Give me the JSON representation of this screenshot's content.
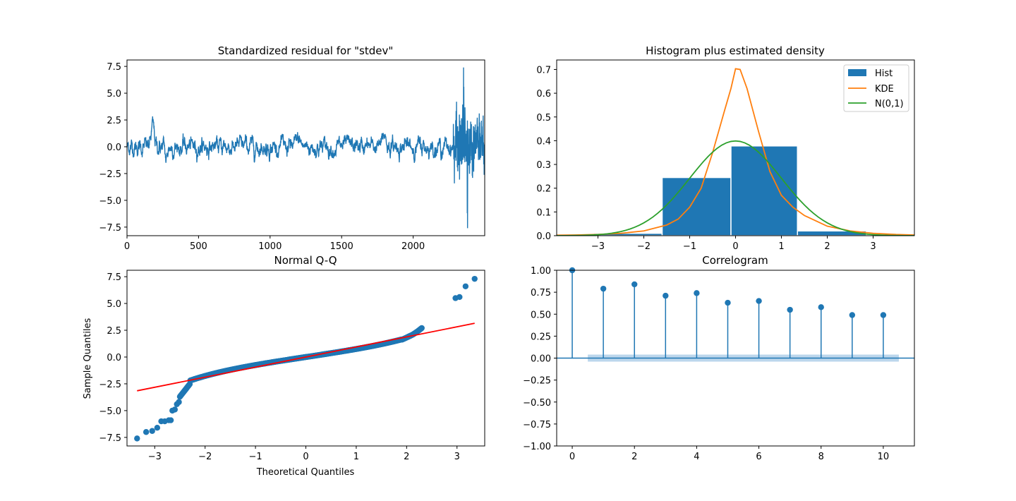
{
  "charts": {
    "residual": {
      "type": "line",
      "title": "Standardized residual for \"stdev\"",
      "xlim": [
        0,
        2500
      ],
      "ylim": [
        -8.3,
        8.1
      ],
      "xticks": [
        0,
        500,
        1000,
        1500,
        2000
      ],
      "yticks": [
        -7.5,
        -5.0,
        -2.5,
        0.0,
        2.5,
        5.0,
        7.5
      ],
      "n_points": 2500,
      "color": "#1f77b4",
      "features": {
        "spike_index": 2352,
        "spike_max": 7.4,
        "spike_min": -7.6,
        "early_bump_index": 180,
        "early_bump_value": 2.3,
        "mid_peak_index": 1200,
        "mid_peak_value": 1.3,
        "late_peak_index": 1800,
        "late_peak_value": 2.1
      }
    },
    "histogram": {
      "type": "bar",
      "title": "Histogram plus estimated density",
      "xlim": [
        -3.9,
        3.9
      ],
      "ylim": [
        0,
        0.74
      ],
      "xticks": [
        -3,
        -2,
        -1,
        0,
        1,
        2,
        3
      ],
      "yticks": [
        0.0,
        0.1,
        0.2,
        0.3,
        0.4,
        0.5,
        0.6,
        0.7
      ],
      "bins": [
        {
          "left": -4.6,
          "right": -3.1,
          "value": 0.002
        },
        {
          "left": -3.1,
          "right": -1.6,
          "value": 0.01
        },
        {
          "left": -1.6,
          "right": -0.1,
          "value": 0.245
        },
        {
          "left": -0.1,
          "right": 1.35,
          "value": 0.378
        },
        {
          "left": 1.35,
          "right": 2.85,
          "value": 0.02
        },
        {
          "left": 2.85,
          "right": 4.35,
          "value": 0.004
        }
      ],
      "kde": {
        "x": [
          -3.9,
          -3.5,
          -3.0,
          -2.5,
          -2.0,
          -1.5,
          -1.25,
          -1.0,
          -0.75,
          -0.5,
          -0.25,
          -0.1,
          0.0,
          0.1,
          0.25,
          0.5,
          0.75,
          1.0,
          1.25,
          1.5,
          2.0,
          2.5,
          3.0,
          3.5,
          3.9
        ],
        "y": [
          0.002,
          0.003,
          0.005,
          0.01,
          0.02,
          0.045,
          0.07,
          0.12,
          0.2,
          0.35,
          0.52,
          0.62,
          0.703,
          0.7,
          0.62,
          0.44,
          0.27,
          0.17,
          0.12,
          0.085,
          0.04,
          0.02,
          0.01,
          0.005,
          0.003
        ]
      },
      "legend": [
        "Hist",
        "KDE",
        "N(0,1)"
      ],
      "colors": {
        "hist": "#1f77b4",
        "kde": "#ff7f0e",
        "normal": "#2ca02c"
      }
    },
    "qq": {
      "type": "scatter",
      "title": "Normal Q-Q",
      "xlabel": "Theoretical Quantiles",
      "ylabel": "Sample Quantiles",
      "xlim": [
        -3.55,
        3.55
      ],
      "ylim": [
        -8.3,
        8.1
      ],
      "xticks": [
        -3,
        -2,
        -1,
        0,
        1,
        2,
        3
      ],
      "yticks": [
        -7.5,
        -5.0,
        -2.5,
        0.0,
        2.5,
        5.0,
        7.5
      ],
      "reference_line": {
        "x": [
          -3.35,
          3.35
        ],
        "y": [
          -3.15,
          3.15
        ]
      },
      "tail_points": [
        {
          "x": -3.35,
          "y": -7.6
        },
        {
          "x": -3.17,
          "y": -7.0
        },
        {
          "x": -3.05,
          "y": -6.9
        },
        {
          "x": -2.95,
          "y": -6.6
        },
        {
          "x": -2.87,
          "y": -6.0
        },
        {
          "x": -2.8,
          "y": -6.0
        },
        {
          "x": -2.72,
          "y": -5.9
        },
        {
          "x": -2.68,
          "y": -5.9
        },
        {
          "x": -2.65,
          "y": -5.0
        },
        {
          "x": -2.6,
          "y": -4.9
        },
        {
          "x": -2.56,
          "y": -4.4
        },
        {
          "x": -2.52,
          "y": -4.2
        },
        {
          "x": 3.17,
          "y": 6.6
        },
        {
          "x": 3.35,
          "y": 7.3
        },
        {
          "x": 2.97,
          "y": 5.5
        },
        {
          "x": 3.05,
          "y": 5.6
        }
      ],
      "colors": {
        "points": "#1f77b4",
        "line": "#ff0000"
      }
    },
    "correlogram": {
      "type": "scatter",
      "title": "Correlogram",
      "xlim": [
        -0.5,
        11.0
      ],
      "ylim": [
        -1.0,
        1.0
      ],
      "xticks": [
        0,
        2,
        4,
        6,
        8,
        10
      ],
      "yticks": [
        -1.0,
        -0.75,
        -0.5,
        -0.25,
        0.0,
        0.25,
        0.5,
        0.75,
        1.0
      ],
      "lags": [
        0,
        1,
        2,
        3,
        4,
        5,
        6,
        7,
        8,
        9,
        10
      ],
      "acf": [
        1.0,
        0.79,
        0.84,
        0.71,
        0.74,
        0.63,
        0.65,
        0.55,
        0.58,
        0.49,
        0.49
      ],
      "confidence_band": {
        "x": [
          0.5,
          10.5
        ],
        "upper": 0.04,
        "lower": -0.04
      },
      "colors": {
        "stem": "#1f77b4",
        "band": "#a6c8e5"
      }
    }
  }
}
